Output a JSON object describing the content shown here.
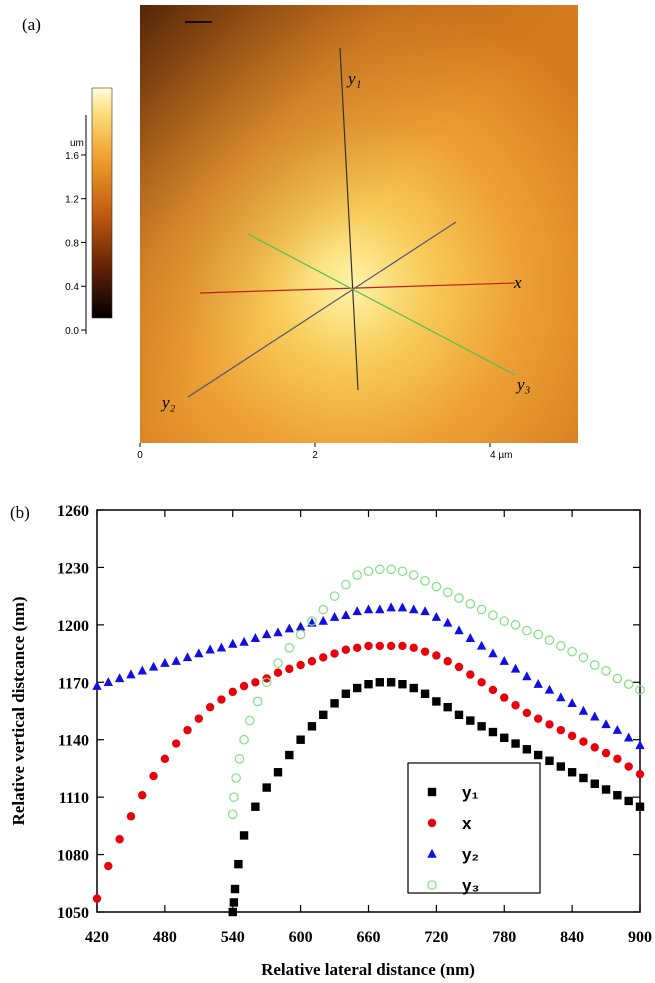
{
  "panel_a": {
    "label": "(a)",
    "colorbar_unit": "um",
    "colorbar_ticks": [
      {
        "value": 0,
        "label": "0.0"
      },
      {
        "value": 0.4,
        "label": "0.4"
      },
      {
        "value": 0.8,
        "label": "0.8"
      },
      {
        "value": 1.2,
        "label": "1.2"
      },
      {
        "value": 1.6,
        "label": "1.6"
      }
    ],
    "xticks": [
      0,
      2,
      {
        "value": 4,
        "label": "4 µm"
      }
    ],
    "line_labels": [
      "y₁",
      "x",
      "y₂",
      "y₃"
    ]
  },
  "chart_data": {
    "type": "scatter",
    "panel_label": "(b)",
    "xlabel": "Relative lateral distance (nm)",
    "ylabel": "Relative vertical distcance (nm)",
    "xlim": [
      420,
      900
    ],
    "ylim": [
      1050,
      1260
    ],
    "xticks": [
      420,
      480,
      540,
      600,
      660,
      720,
      780,
      840,
      900
    ],
    "yticks": [
      1050,
      1080,
      1110,
      1140,
      1170,
      1200,
      1230,
      1260
    ],
    "series": [
      {
        "name": "y₁",
        "color": "#000000",
        "marker": "square",
        "x": [
          540,
          541,
          542,
          545,
          550,
          560,
          570,
          580,
          590,
          600,
          610,
          620,
          630,
          640,
          650,
          660,
          670,
          680,
          690,
          700,
          710,
          720,
          730,
          740,
          750,
          760,
          770,
          780,
          790,
          800,
          810,
          820,
          830,
          840,
          850,
          860,
          870,
          880,
          890,
          900
        ],
        "values": [
          1050,
          1055,
          1062,
          1075,
          1090,
          1105,
          1115,
          1123,
          1132,
          1140,
          1147,
          1153,
          1159,
          1164,
          1167,
          1169,
          1170,
          1170,
          1169,
          1167,
          1164,
          1160,
          1157,
          1153,
          1150,
          1147,
          1144,
          1141,
          1138,
          1135,
          1132,
          1129,
          1126,
          1123,
          1120,
          1117,
          1114,
          1111,
          1108,
          1105
        ]
      },
      {
        "name": "x",
        "color": "#e8000b",
        "marker": "circle",
        "x": [
          420,
          430,
          440,
          450,
          460,
          470,
          480,
          490,
          500,
          510,
          520,
          530,
          540,
          550,
          560,
          570,
          580,
          590,
          600,
          610,
          620,
          630,
          640,
          650,
          660,
          670,
          680,
          690,
          700,
          710,
          720,
          730,
          740,
          750,
          760,
          770,
          780,
          790,
          800,
          810,
          820,
          830,
          840,
          850,
          860,
          870,
          880,
          890,
          900
        ],
        "values": [
          1057,
          1074,
          1088,
          1100,
          1111,
          1121,
          1130,
          1138,
          1145,
          1151,
          1157,
          1161,
          1165,
          1168,
          1170,
          1172,
          1175,
          1177,
          1179,
          1181,
          1183,
          1185,
          1187,
          1188,
          1189,
          1189,
          1189,
          1189,
          1188,
          1186,
          1184,
          1181,
          1178,
          1174,
          1170,
          1166,
          1162,
          1158,
          1154,
          1151,
          1148,
          1145,
          1142,
          1139,
          1136,
          1133,
          1130,
          1126,
          1122
        ]
      },
      {
        "name": "y₂",
        "color": "#1010e0",
        "marker": "triangle",
        "x": [
          420,
          430,
          440,
          450,
          460,
          470,
          480,
          490,
          500,
          510,
          520,
          530,
          540,
          550,
          560,
          570,
          580,
          590,
          600,
          610,
          620,
          630,
          640,
          650,
          660,
          670,
          680,
          690,
          700,
          710,
          720,
          730,
          740,
          750,
          760,
          770,
          780,
          790,
          800,
          810,
          820,
          830,
          840,
          850,
          860,
          870,
          880,
          890,
          900
        ],
        "values": [
          1168,
          1170,
          1172,
          1174,
          1176,
          1178,
          1180,
          1181,
          1183,
          1185,
          1187,
          1188,
          1190,
          1191,
          1193,
          1195,
          1196,
          1198,
          1199,
          1201,
          1202,
          1204,
          1205,
          1207,
          1208,
          1208,
          1209,
          1209,
          1208,
          1207,
          1204,
          1201,
          1197,
          1193,
          1189,
          1185,
          1181,
          1177,
          1173,
          1169,
          1166,
          1162,
          1159,
          1155,
          1152,
          1148,
          1145,
          1141,
          1137
        ]
      },
      {
        "name": "y₃",
        "color": "#80e080",
        "marker": "open-circle",
        "x": [
          540,
          541,
          543,
          546,
          550,
          555,
          562,
          570,
          580,
          590,
          600,
          610,
          620,
          630,
          640,
          650,
          660,
          670,
          680,
          690,
          700,
          710,
          720,
          730,
          740,
          750,
          760,
          770,
          780,
          790,
          800,
          810,
          820,
          830,
          840,
          850,
          860,
          870,
          880,
          890,
          900
        ],
        "values": [
          1101,
          1110,
          1120,
          1130,
          1140,
          1150,
          1160,
          1170,
          1180,
          1188,
          1195,
          1202,
          1208,
          1215,
          1221,
          1226,
          1228,
          1229,
          1229,
          1228,
          1226,
          1223,
          1220,
          1217,
          1214,
          1211,
          1208,
          1205,
          1202,
          1200,
          1197,
          1195,
          1192,
          1189,
          1186,
          1183,
          1179,
          1176,
          1172,
          1169,
          1166
        ]
      }
    ]
  }
}
